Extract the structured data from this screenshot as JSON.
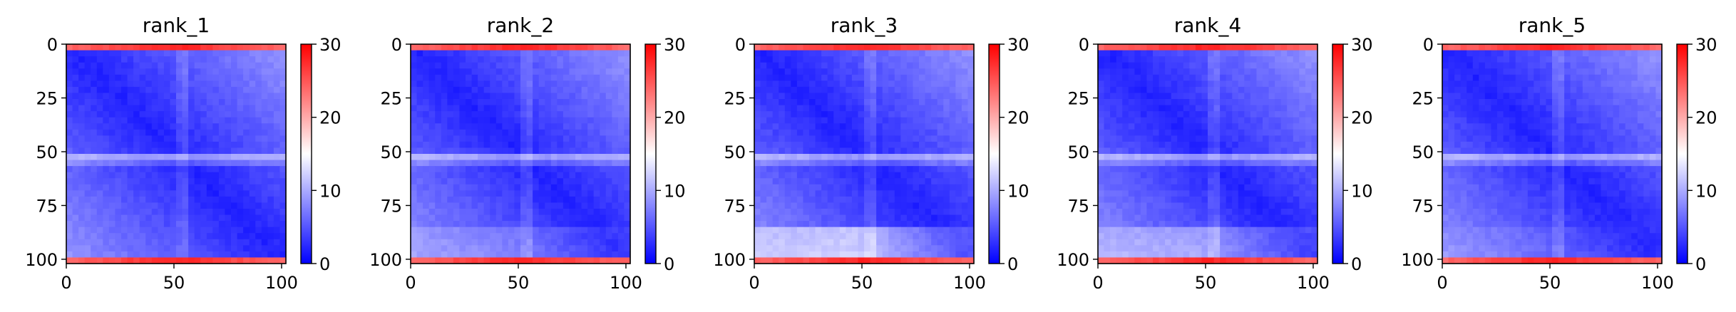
{
  "chart_data": [
    {
      "type": "heatmap",
      "title": "rank_1",
      "xticks": [
        "0",
        "50",
        "100"
      ],
      "yticks": [
        "0",
        "25",
        "50",
        "75",
        "100"
      ],
      "xlim": [
        0,
        102
      ],
      "ylim": [
        102,
        0
      ],
      "colorbar": {
        "ticks": [
          "0",
          "10",
          "20",
          "30"
        ],
        "vmin": 0,
        "vmax": 30,
        "colormap": "bwr"
      },
      "bottom_band_intensity": 0.0
    },
    {
      "type": "heatmap",
      "title": "rank_2",
      "xticks": [
        "0",
        "50",
        "100"
      ],
      "yticks": [
        "0",
        "25",
        "50",
        "75",
        "100"
      ],
      "xlim": [
        0,
        102
      ],
      "ylim": [
        102,
        0
      ],
      "colorbar": {
        "ticks": [
          "0",
          "10",
          "20",
          "30"
        ],
        "vmin": 0,
        "vmax": 30,
        "colormap": "bwr"
      },
      "bottom_band_intensity": 0.25
    },
    {
      "type": "heatmap",
      "title": "rank_3",
      "xticks": [
        "0",
        "50",
        "100"
      ],
      "yticks": [
        "0",
        "25",
        "50",
        "75",
        "100"
      ],
      "xlim": [
        0,
        102
      ],
      "ylim": [
        102,
        0
      ],
      "colorbar": {
        "ticks": [
          "0",
          "10",
          "20",
          "30"
        ],
        "vmin": 0,
        "vmax": 30,
        "colormap": "bwr"
      },
      "bottom_band_intensity": 0.75
    },
    {
      "type": "heatmap",
      "title": "rank_4",
      "xticks": [
        "0",
        "50",
        "100"
      ],
      "yticks": [
        "0",
        "25",
        "50",
        "75",
        "100"
      ],
      "xlim": [
        0,
        102
      ],
      "ylim": [
        102,
        0
      ],
      "colorbar": {
        "ticks": [
          "0",
          "10",
          "20",
          "30"
        ],
        "vmin": 0,
        "vmax": 30,
        "colormap": "bwr"
      },
      "bottom_band_intensity": 0.5
    },
    {
      "type": "heatmap",
      "title": "rank_5",
      "xticks": [
        "0",
        "50",
        "100"
      ],
      "yticks": [
        "0",
        "25",
        "50",
        "75",
        "100"
      ],
      "xlim": [
        0,
        102
      ],
      "ylim": [
        102,
        0
      ],
      "colorbar": {
        "ticks": [
          "0",
          "10",
          "20",
          "30"
        ],
        "vmin": 0,
        "vmax": 30,
        "colormap": "bwr"
      },
      "bottom_band_intensity": 0.1
    }
  ]
}
